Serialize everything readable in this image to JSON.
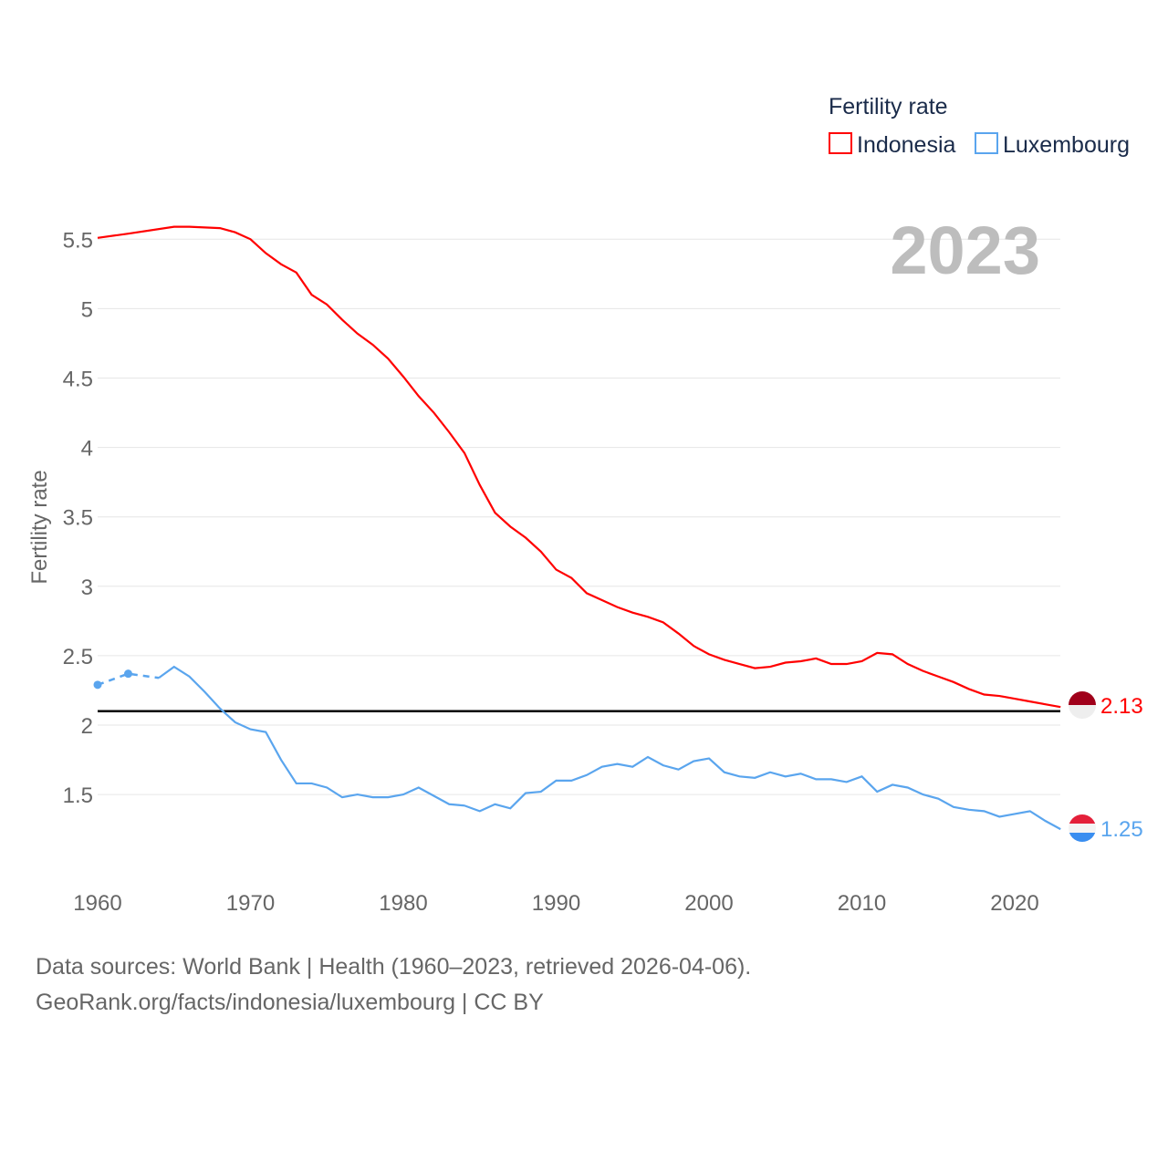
{
  "chart_data": {
    "type": "line",
    "ylabel": "Fertility rate",
    "legend_title": "Fertility rate",
    "legend_position": "top-right",
    "year_label": "2023",
    "yticks": [
      "1.5",
      "2",
      "2.5",
      "3",
      "3.5",
      "4",
      "4.5",
      "5",
      "5.5"
    ],
    "ytick_values": [
      1.5,
      2,
      2.5,
      3,
      3.5,
      4,
      4.5,
      5,
      5.5
    ],
    "xticks": [
      "1960",
      "1970",
      "1980",
      "1990",
      "2000",
      "2010",
      "2020"
    ],
    "xtick_values": [
      1960,
      1970,
      1980,
      1990,
      2000,
      2010,
      2020
    ],
    "xlim": [
      1960,
      2023
    ],
    "ylim": [
      1.0,
      5.6
    ],
    "reference_line": 2.1,
    "series": [
      {
        "name": "Indonesia",
        "color": "#ff0000",
        "end_label": "2.13",
        "x": [
          1960,
          1962,
          1965,
          1966,
          1968,
          1969,
          1970,
          1971,
          1972,
          1973,
          1974,
          1975,
          1976,
          1977,
          1978,
          1979,
          1980,
          1981,
          1982,
          1983,
          1984,
          1985,
          1986,
          1987,
          1988,
          1989,
          1990,
          1991,
          1992,
          1993,
          1994,
          1995,
          1996,
          1997,
          1998,
          1999,
          2000,
          2001,
          2002,
          2003,
          2004,
          2005,
          2006,
          2007,
          2008,
          2009,
          2010,
          2011,
          2012,
          2013,
          2014,
          2015,
          2016,
          2017,
          2018,
          2019,
          2020,
          2021,
          2022,
          2023
        ],
        "y": [
          5.51,
          5.54,
          5.59,
          5.59,
          5.58,
          5.55,
          5.5,
          5.4,
          5.32,
          5.26,
          5.1,
          5.03,
          4.92,
          4.82,
          4.74,
          4.64,
          4.51,
          4.37,
          4.25,
          4.11,
          3.96,
          3.73,
          3.53,
          3.43,
          3.35,
          3.25,
          3.12,
          3.06,
          2.95,
          2.9,
          2.85,
          2.81,
          2.78,
          2.74,
          2.66,
          2.57,
          2.51,
          2.47,
          2.44,
          2.41,
          2.42,
          2.45,
          2.46,
          2.48,
          2.44,
          2.44,
          2.46,
          2.52,
          2.51,
          2.44,
          2.39,
          2.35,
          2.31,
          2.26,
          2.22,
          2.21,
          2.19,
          2.17,
          2.15,
          2.13
        ]
      },
      {
        "name": "Luxembourg",
        "color": "#5aa5ee",
        "end_label": "1.25",
        "dashed_x": [
          1960,
          1962,
          1964
        ],
        "dashed_y": [
          2.29,
          2.37,
          2.34
        ],
        "x": [
          1964,
          1965,
          1966,
          1967,
          1968,
          1969,
          1970,
          1971,
          1972,
          1973,
          1974,
          1975,
          1976,
          1977,
          1978,
          1979,
          1980,
          1981,
          1982,
          1983,
          1984,
          1985,
          1986,
          1987,
          1988,
          1989,
          1990,
          1991,
          1992,
          1993,
          1994,
          1995,
          1996,
          1997,
          1998,
          1999,
          2000,
          2001,
          2002,
          2003,
          2004,
          2005,
          2006,
          2007,
          2008,
          2009,
          2010,
          2011,
          2012,
          2013,
          2014,
          2015,
          2016,
          2017,
          2018,
          2019,
          2020,
          2021,
          2022,
          2023
        ],
        "y": [
          2.34,
          2.42,
          2.35,
          2.24,
          2.12,
          2.02,
          1.97,
          1.95,
          1.75,
          1.58,
          1.58,
          1.55,
          1.48,
          1.5,
          1.48,
          1.48,
          1.5,
          1.55,
          1.49,
          1.43,
          1.42,
          1.38,
          1.43,
          1.4,
          1.51,
          1.52,
          1.6,
          1.6,
          1.64,
          1.7,
          1.72,
          1.7,
          1.77,
          1.71,
          1.68,
          1.74,
          1.76,
          1.66,
          1.63,
          1.62,
          1.66,
          1.63,
          1.65,
          1.61,
          1.61,
          1.59,
          1.63,
          1.52,
          1.57,
          1.55,
          1.5,
          1.47,
          1.41,
          1.39,
          1.38,
          1.34,
          1.36,
          1.38,
          1.31,
          1.25
        ]
      }
    ]
  },
  "footer": {
    "line1": "Data sources: World Bank | Health (1960–2023, retrieved 2026-04-06).",
    "line2": "GeoRank.org/facts/indonesia/luxembourg | CC BY"
  }
}
